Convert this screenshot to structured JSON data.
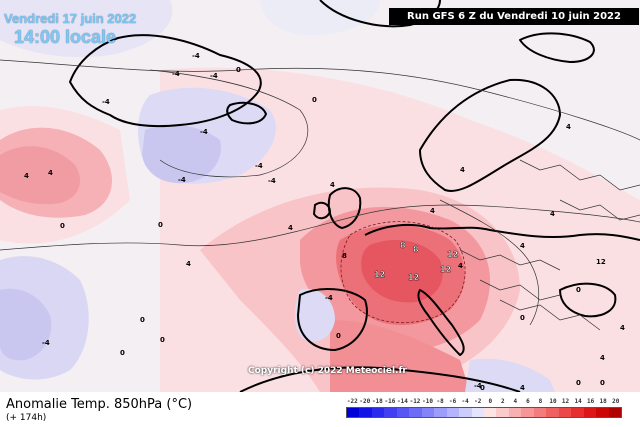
{
  "header": {
    "date_title": "Vendredi 17 juin 2022",
    "time_title": "14:00 locale",
    "run_info": "Run GFS 6 Z du Vendredi 10 juin 2022"
  },
  "map": {
    "copyright": "Copyright (c) 2022 Meteociel.fr",
    "contour_labels": [
      "-4",
      "-4",
      "-4",
      "-4",
      "-4",
      "-4",
      "-4",
      "-4",
      "0",
      "0",
      "0",
      "0",
      "0",
      "0",
      "0",
      "0",
      "0",
      "0",
      "4",
      "4",
      "4",
      "4",
      "4",
      "4",
      "4",
      "4",
      "4",
      "4",
      "8",
      "8",
      "8",
      "12",
      "12",
      "12",
      "12",
      "12",
      "4",
      "-4",
      "0",
      "-4",
      "4",
      "-4",
      "0",
      "0",
      "4",
      "4"
    ]
  },
  "legend": {
    "parameter": "Anomalie Temp. 850hPa (°C)",
    "lead_time": "(+ 174h)",
    "ticks": [
      "-22",
      "-20",
      "-18",
      "-16",
      "-14",
      "-12",
      "-10",
      "-8",
      "-6",
      "-4",
      "-2",
      "0",
      "2",
      "4",
      "6",
      "8",
      "10",
      "12",
      "14",
      "16",
      "18",
      "20"
    ],
    "colors": [
      "#0000d8",
      "#1414e6",
      "#2a2aee",
      "#4040f2",
      "#5656f4",
      "#6c6cf6",
      "#8484f8",
      "#9c9cfa",
      "#b4b4fc",
      "#ccccfd",
      "#e4e4fe",
      "#fde4e4",
      "#fbcaca",
      "#f9b0b0",
      "#f69696",
      "#f37c7c",
      "#f06262",
      "#ec4848",
      "#e62e2e",
      "#dc1616",
      "#cc0606",
      "#b00000"
    ]
  }
}
